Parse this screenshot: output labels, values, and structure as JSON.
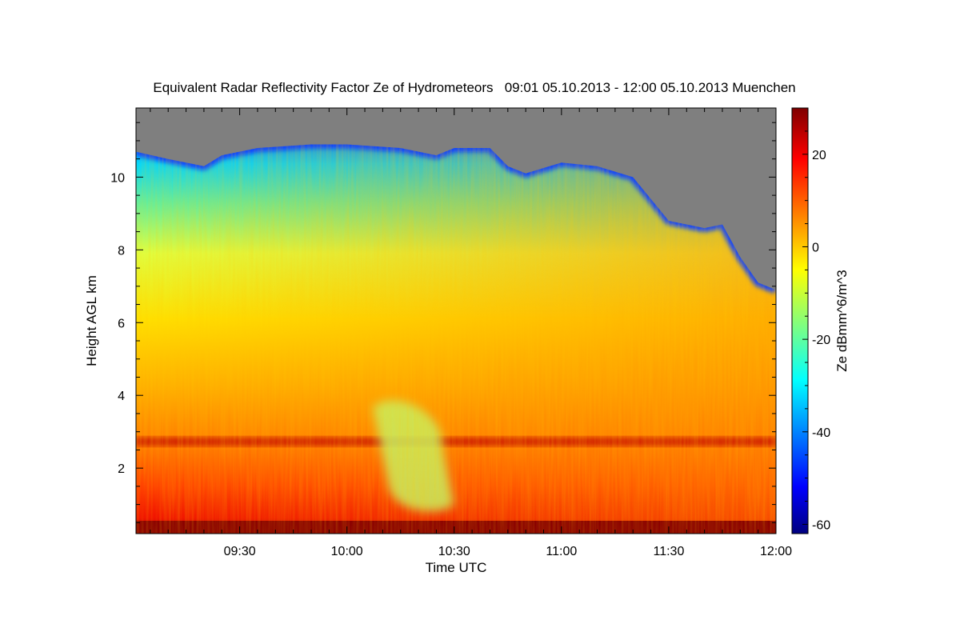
{
  "chart_data": {
    "type": "heatmap",
    "title": "Equivalent Radar Reflectivity Factor Ze of Hydrometeors   09:01 05.10.2013 - 12:00 05.10.2013 Muenchen",
    "xlabel": "Time UTC",
    "ylabel": "Height AGL km",
    "colorbar_label": "Ze dBmm^6/m^3",
    "x_range": [
      "09:01",
      "12:00"
    ],
    "x_ticks": [
      "09:30",
      "10:00",
      "10:30",
      "11:00",
      "11:30",
      "12:00"
    ],
    "y_range": [
      0.2,
      11.9
    ],
    "y_ticks": [
      2,
      4,
      6,
      8,
      10
    ],
    "colorbar_range": [
      -62,
      30
    ],
    "colorbar_ticks": [
      20,
      0,
      -20,
      -40,
      -60
    ],
    "colormap": "jet",
    "no_data_color": "#7f7f7f",
    "grid": false,
    "echo_top_km": [
      {
        "t": "09:01",
        "h": 10.7
      },
      {
        "t": "09:10",
        "h": 10.5
      },
      {
        "t": "09:20",
        "h": 10.3
      },
      {
        "t": "09:25",
        "h": 10.6
      },
      {
        "t": "09:35",
        "h": 10.8
      },
      {
        "t": "09:50",
        "h": 10.9
      },
      {
        "t": "10:00",
        "h": 10.9
      },
      {
        "t": "10:15",
        "h": 10.8
      },
      {
        "t": "10:25",
        "h": 10.6
      },
      {
        "t": "10:30",
        "h": 10.8
      },
      {
        "t": "10:40",
        "h": 10.8
      },
      {
        "t": "10:45",
        "h": 10.3
      },
      {
        "t": "10:50",
        "h": 10.1
      },
      {
        "t": "11:00",
        "h": 10.4
      },
      {
        "t": "11:10",
        "h": 10.3
      },
      {
        "t": "11:20",
        "h": 10.0
      },
      {
        "t": "11:25",
        "h": 9.4
      },
      {
        "t": "11:30",
        "h": 8.8
      },
      {
        "t": "11:40",
        "h": 8.6
      },
      {
        "t": "11:45",
        "h": 8.7
      },
      {
        "t": "11:50",
        "h": 7.8
      },
      {
        "t": "11:55",
        "h": 7.1
      },
      {
        "t": "12:00",
        "h": 6.9
      }
    ],
    "features": [
      {
        "name": "melting layer bright band",
        "h_km": 2.75,
        "ze_dbz": 20
      },
      {
        "name": "near-surface layer",
        "h_km": 0.35,
        "ze_dbz": 29
      },
      {
        "name": "weaker precipitation shaft",
        "t_range": [
          "10:05",
          "10:30"
        ],
        "h_range_km": [
          0.8,
          3.9
        ],
        "ze_dbz": -8
      }
    ]
  }
}
